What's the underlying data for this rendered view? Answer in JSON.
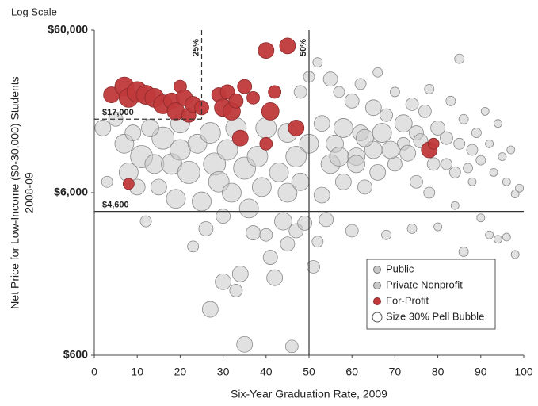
{
  "chart_data": {
    "type": "scatter",
    "y_scale_note": "Log Scale",
    "ylabel": [
      "Net Price for Low-Income ($0-30,000) Students",
      "2008-09"
    ],
    "xlabel": "Six-Year Graduation Rate, 2009",
    "log_y": true,
    "xlim": [
      0,
      100
    ],
    "xticks": [
      0,
      10,
      20,
      30,
      40,
      50,
      60,
      70,
      80,
      90,
      100
    ],
    "ylim": [
      600,
      60000
    ],
    "yticks": [
      {
        "value": 600,
        "label": "$600"
      },
      {
        "value": 6000,
        "label": "$6,000"
      },
      {
        "value": 60000,
        "label": "$60,000"
      }
    ],
    "reference_lines": [
      {
        "axis": "x",
        "value": 50,
        "label": "50%"
      },
      {
        "axis": "y",
        "value": 4600,
        "label": "$4,600"
      },
      {
        "axis": "x",
        "value": 25,
        "label": "25%",
        "dashed": true,
        "until": 17000
      },
      {
        "axis": "y",
        "value": 17000,
        "label": "$17,000",
        "dashed": true,
        "until": 25
      }
    ],
    "size_legend": {
      "label": "Size 30% Pell Bubble",
      "value": 30
    },
    "series": [
      {
        "name": "Public",
        "color": "#c8c8c8",
        "x": [
          2,
          3,
          5,
          7,
          8,
          10,
          11,
          12,
          14,
          15,
          16,
          18,
          19,
          20,
          22,
          23,
          24,
          25,
          26,
          27,
          28,
          29,
          30,
          30,
          31,
          32,
          33,
          34,
          35,
          35,
          36,
          37,
          38,
          39,
          40,
          41,
          42,
          43,
          44,
          45,
          45,
          46,
          47,
          48,
          49,
          50,
          51,
          52,
          53,
          54,
          55,
          56,
          58,
          60,
          61,
          62,
          63,
          65,
          66,
          68,
          70,
          72,
          74,
          75,
          78,
          80,
          82,
          84,
          86,
          88,
          90,
          92,
          94,
          96,
          98
        ],
        "values": [
          15000,
          7000,
          17000,
          12000,
          8000,
          6500,
          10000,
          4000,
          9000,
          6500,
          13000,
          9000,
          5500,
          11000,
          8000,
          2800,
          12000,
          5300,
          3600,
          1150,
          9000,
          7000,
          4300,
          1700,
          11000,
          6000,
          1500,
          1900,
          8500,
          700,
          4800,
          3400,
          10000,
          6500,
          3300,
          2400,
          1800,
          8000,
          4000,
          6000,
          2900,
          680,
          3500,
          7000,
          3900,
          12000,
          2100,
          3000,
          5800,
          4100,
          9000,
          12000,
          7000,
          3500,
          10000,
          14000,
          6500,
          11000,
          8000,
          3300,
          9000,
          12000,
          3600,
          7000,
          6000,
          3700,
          9000,
          5000,
          2600,
          7000,
          4200,
          3300,
          3100,
          3200,
          2500
        ],
        "sizes": [
          50,
          35,
          45,
          60,
          60,
          50,
          70,
          35,
          60,
          50,
          70,
          65,
          60,
          65,
          70,
          35,
          60,
          60,
          45,
          50,
          70,
          65,
          45,
          50,
          65,
          60,
          40,
          50,
          70,
          50,
          60,
          45,
          65,
          60,
          40,
          45,
          50,
          60,
          55,
          60,
          45,
          40,
          45,
          55,
          45,
          60,
          40,
          35,
          50,
          45,
          60,
          55,
          50,
          40,
          55,
          50,
          45,
          55,
          50,
          30,
          45,
          40,
          30,
          40,
          35,
          25,
          35,
          25,
          30,
          25,
          25,
          25,
          25,
          25,
          25
        ]
      },
      {
        "name": "Private Nonprofit",
        "color": "#c8c8c8",
        "x": [
          48,
          50,
          52,
          55,
          57,
          60,
          62,
          65,
          66,
          68,
          70,
          72,
          74,
          75,
          77,
          78,
          80,
          82,
          83,
          85,
          85,
          86,
          88,
          89,
          90,
          91,
          92,
          93,
          94,
          95,
          96,
          97,
          98,
          99,
          53,
          58,
          63,
          67,
          45,
          40,
          47,
          57,
          61,
          69,
          73,
          76,
          79,
          84,
          87,
          9,
          13,
          20,
          27,
          33
        ],
        "values": [
          25000,
          31000,
          38000,
          30000,
          25000,
          22000,
          28000,
          20000,
          33000,
          18000,
          25000,
          16000,
          21000,
          14000,
          19000,
          26000,
          15000,
          13000,
          22000,
          40000,
          12000,
          17000,
          11000,
          14000,
          9500,
          19000,
          12000,
          8000,
          16000,
          10000,
          7000,
          11000,
          5900,
          6400,
          16000,
          15000,
          13000,
          14000,
          14000,
          15000,
          10000,
          10000,
          9000,
          11000,
          10500,
          12500,
          9000,
          8000,
          8500,
          14000,
          15000,
          16000,
          14000,
          15000
        ],
        "sizes": [
          40,
          35,
          30,
          45,
          35,
          45,
          35,
          50,
          30,
          40,
          30,
          55,
          40,
          45,
          40,
          30,
          45,
          40,
          30,
          30,
          35,
          30,
          35,
          30,
          30,
          25,
          25,
          25,
          25,
          25,
          25,
          25,
          25,
          25,
          50,
          60,
          55,
          60,
          60,
          65,
          65,
          60,
          55,
          55,
          50,
          45,
          40,
          35,
          30,
          50,
          55,
          60,
          65,
          65
        ]
      },
      {
        "name": "For-Profit",
        "color": "#c0393b",
        "x": [
          4,
          7,
          8,
          10,
          12,
          14,
          16,
          18,
          19,
          20,
          21,
          22,
          23,
          25,
          29,
          30,
          31,
          32,
          33,
          35,
          37,
          34,
          40,
          42,
          41,
          40,
          45,
          47,
          78,
          79,
          8
        ],
        "values": [
          24000,
          27000,
          23000,
          25000,
          24000,
          23000,
          21000,
          22000,
          19000,
          27000,
          23000,
          18000,
          21000,
          20000,
          24000,
          20000,
          25000,
          19000,
          22000,
          27000,
          23000,
          13000,
          12000,
          25000,
          19000,
          45000,
          48000,
          15000,
          11000,
          12000,
          6800
        ],
        "sizes": [
          50,
          60,
          60,
          65,
          60,
          60,
          60,
          50,
          55,
          40,
          50,
          45,
          50,
          45,
          45,
          55,
          45,
          55,
          45,
          45,
          40,
          50,
          40,
          40,
          55,
          50,
          50,
          50,
          50,
          35,
          35
        ]
      }
    ]
  }
}
